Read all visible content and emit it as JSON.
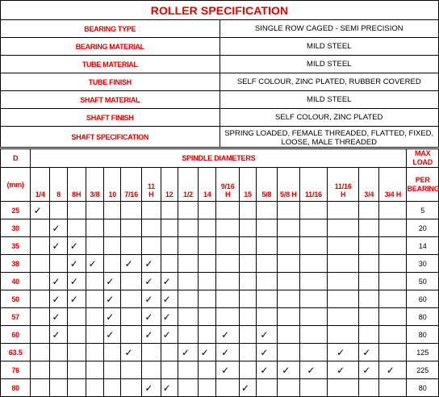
{
  "title": "ROLLER SPECIFICATION",
  "spec_rows": [
    {
      "label": "BEARING TYPE",
      "value": "SINGLE ROW CAGED - SEMI PRECISION"
    },
    {
      "label": "BEARING MATERIAL",
      "value": "MILD STEEL"
    },
    {
      "label": "TUBE MATERIAL",
      "value": "MILD STEEL"
    },
    {
      "label": "TUBE FINISH",
      "value": "SELF COLOUR, ZINC PLATED, RUBBER COVERED"
    },
    {
      "label": "SHAFT MATERIAL",
      "value": "MILD STEEL"
    },
    {
      "label": "SHAFT FINISH",
      "value": "SELF COLOUR, ZINC PLATED"
    },
    {
      "label": "SHAFT SPECIFICATION",
      "value": "SPRING LOADED, FEMALE THREADED, FLATTED, FIXED, LOOSE, MALE THREADED"
    }
  ],
  "grid": {
    "d_header": "D",
    "d_unit": "(mm)",
    "spindle_header": "SPINDLE DIAMETERS",
    "load_header": "MAX LOAD",
    "load_sub": "PER BEARING",
    "tick_symbol": "✓",
    "diameters": [
      [
        "1/4"
      ],
      [
        "8"
      ],
      [
        "8H"
      ],
      [
        "3/8"
      ],
      [
        "10"
      ],
      [
        "7/16"
      ],
      [
        "11",
        "H"
      ],
      [
        "12"
      ],
      [
        "1/2"
      ],
      [
        "14"
      ],
      [
        "9/16",
        "H"
      ],
      [
        "15"
      ],
      [
        "5/8"
      ],
      [
        "5/8 H"
      ],
      [
        "11/16"
      ],
      [
        "11/16",
        "H"
      ],
      [
        "3/4"
      ],
      [
        "3/4 H"
      ]
    ],
    "rows": [
      {
        "d": "25",
        "load": "5",
        "ticks": [
          0
        ]
      },
      {
        "d": "30",
        "load": "20",
        "ticks": [
          1
        ]
      },
      {
        "d": "35",
        "load": "14",
        "ticks": [
          1,
          2
        ]
      },
      {
        "d": "38",
        "load": "30",
        "ticks": [
          2,
          3,
          5,
          6
        ]
      },
      {
        "d": "40",
        "load": "50",
        "ticks": [
          1,
          2,
          4,
          6,
          7
        ]
      },
      {
        "d": "50",
        "load": "60",
        "ticks": [
          1,
          2,
          4,
          6,
          7
        ]
      },
      {
        "d": "57",
        "load": "80",
        "ticks": [
          1,
          4,
          6,
          7
        ]
      },
      {
        "d": "60",
        "load": "80",
        "ticks": [
          1,
          4,
          6,
          7,
          10,
          12
        ]
      },
      {
        "d": "63.5",
        "load": "125",
        "ticks": [
          5,
          8,
          9,
          10,
          12,
          15,
          16
        ]
      },
      {
        "d": "76",
        "load": "225",
        "ticks": [
          10,
          12,
          13,
          14,
          15,
          16,
          17
        ]
      },
      {
        "d": "80",
        "load": "80",
        "ticks": [
          6,
          7,
          11
        ]
      }
    ]
  },
  "colors": {
    "label_red": "#e00000",
    "border": "#000000"
  }
}
